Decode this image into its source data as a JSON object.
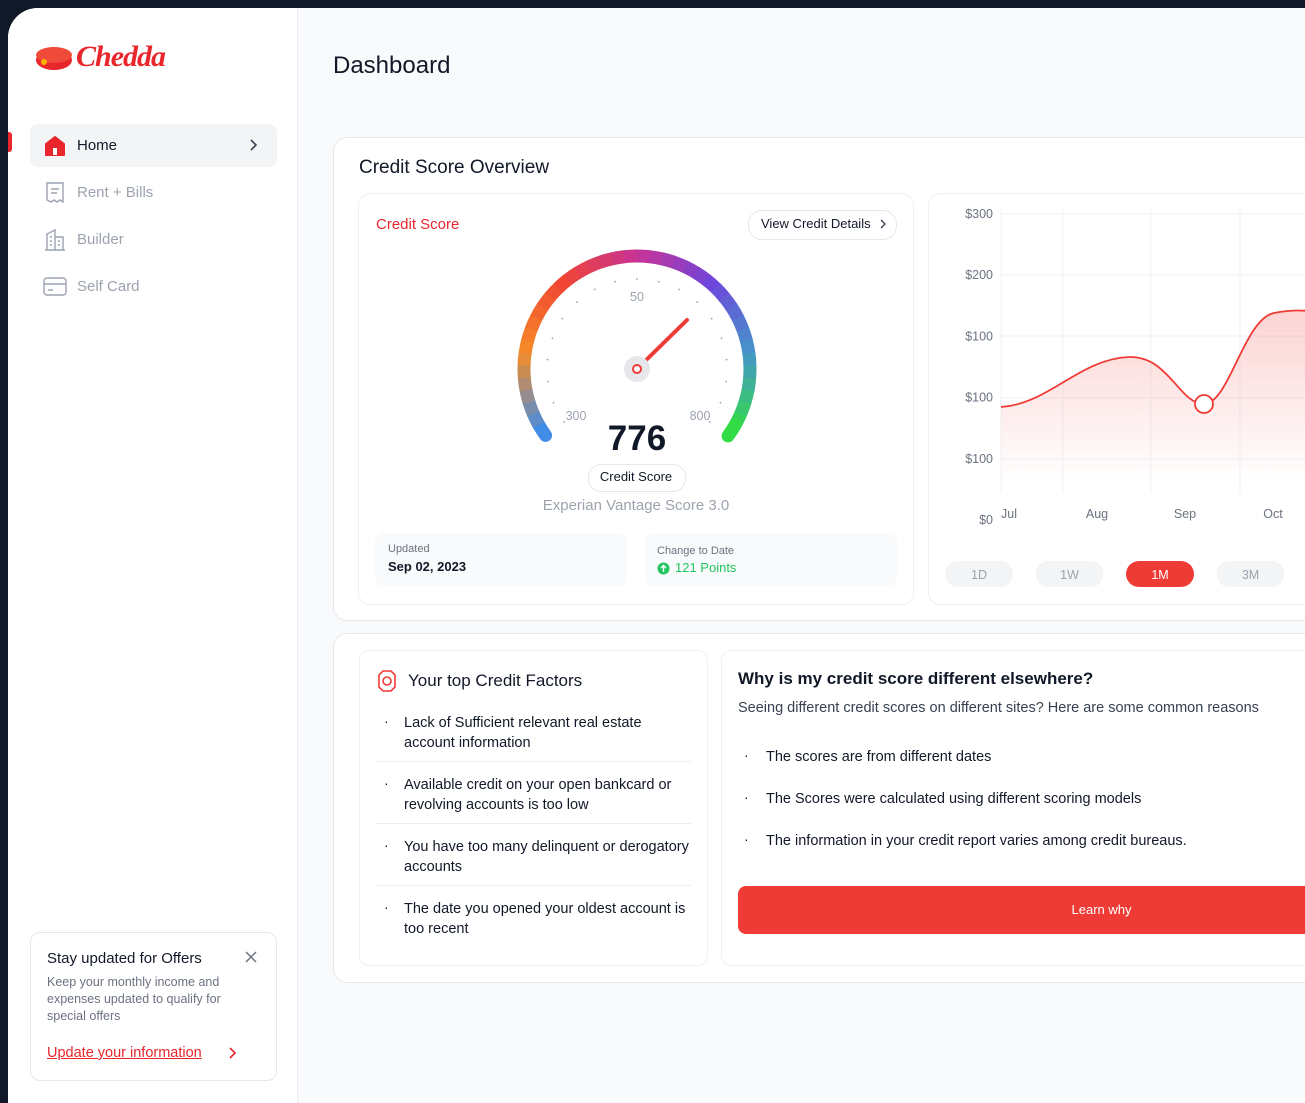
{
  "sidebar": {
    "logo": "Chedda",
    "nav": [
      {
        "label": "Home"
      },
      {
        "label": "Rent + Bills"
      },
      {
        "label": "Builder"
      },
      {
        "label": "Self Card"
      }
    ],
    "promo": {
      "title": "Stay updated for Offers",
      "text": "Keep your monthly income and expenses updated to qualify for special offers",
      "link": "Update your information"
    }
  },
  "header": {
    "title": "Dashboard"
  },
  "overview": {
    "title": "Credit Score Overview",
    "score_card": {
      "label": "Credit Score",
      "button": "View Credit Details",
      "gauge_labels": [
        "300",
        "50",
        "800"
      ],
      "score": 776,
      "score_badge": "Credit Score",
      "model": "Experian Vantage Score 3.0",
      "updated_label": "Updated",
      "updated_value": "Sep 02, 2023",
      "change_label": "Change to Date",
      "change_value": "121 Points"
    },
    "chart": {
      "y_labels": [
        "$300",
        "$200",
        "$100",
        "$100",
        "$100",
        "$0"
      ],
      "x_labels": [
        "Jul",
        "Aug",
        "Sep",
        "Oct"
      ],
      "ranges": [
        "1D",
        "1W",
        "1M",
        "3M"
      ],
      "active_range": "1M"
    }
  },
  "factors": {
    "title": "Your top Credit Factors",
    "items": [
      "Lack of Sufficient relevant real estate account information",
      "Available credit on your open bankcard or revolving accounts is too low",
      "You have too many delinquent or derogatory accounts",
      "The date you opened your oldest account is too recent"
    ]
  },
  "why": {
    "title": "Why is my credit score different elsewhere?",
    "intro": "Seeing different credit scores on different sites? Here are some common reasons",
    "items": [
      "The scores are from different dates",
      "The Scores were calculated using different scoring models",
      "The information in your credit report varies among credit bureaus."
    ],
    "button": "Learn why"
  }
}
